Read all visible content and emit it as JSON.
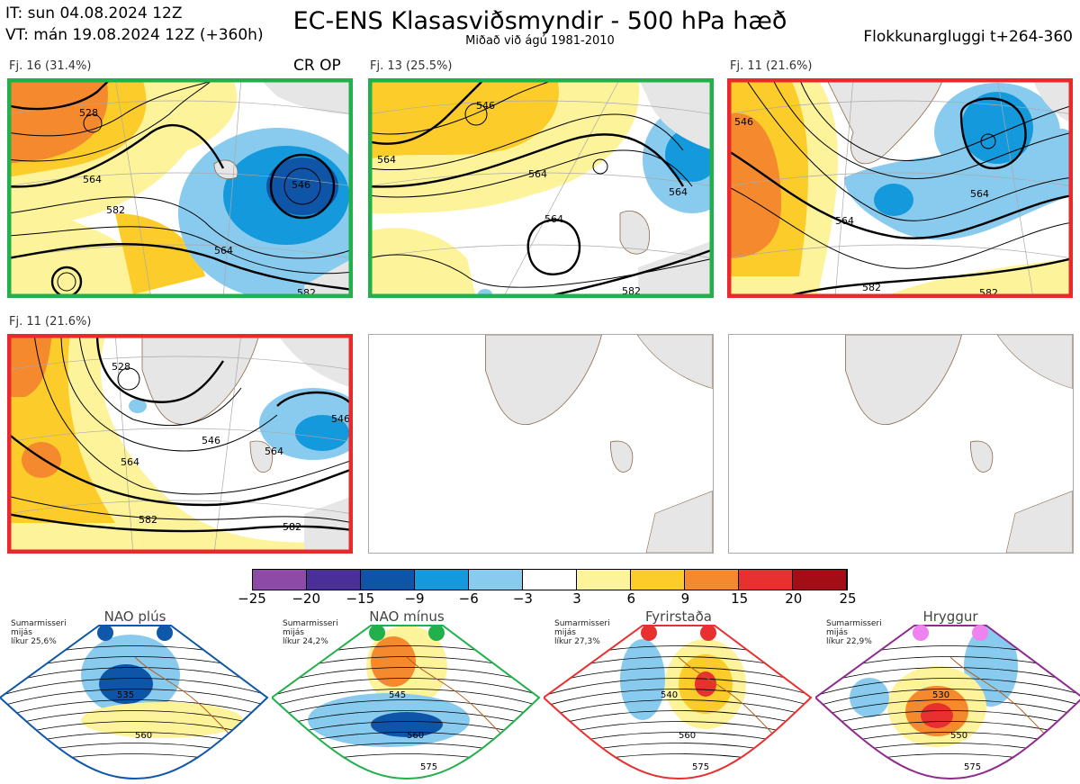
{
  "header": {
    "it_line": "IT: sun 04.08.2024 12Z",
    "vt_line": "VT: mán 19.08.2024 12Z  (+360h)",
    "title": "EC-ENS Klasasviðsmyndir - 500 hPa hæð",
    "subtitle": "Miðað við ágú 1981-2010",
    "window": "Flokkunargluggi t+264-360"
  },
  "panels": [
    {
      "label": "Fj. 16 (31.4%)",
      "tag": "CR OP",
      "border": "#21b04b",
      "contours": [
        "528",
        "546",
        "564",
        "582",
        "564",
        "582"
      ]
    },
    {
      "label": "Fj. 13 (25.5%)",
      "border": "#21b04b",
      "contours": [
        "546",
        "564",
        "564",
        "564",
        "564",
        "582"
      ]
    },
    {
      "label": "Fj. 11 (21.6%)",
      "border": "#ea2a2a",
      "contours": [
        "546",
        "564",
        "564",
        "582",
        "582"
      ]
    },
    {
      "label": "Fj. 11 (21.6%)",
      "border": "#ea2a2a",
      "contours": [
        "528",
        "546",
        "546",
        "564",
        "564",
        "582",
        "582"
      ]
    }
  ],
  "colorbar": {
    "ticks": [
      "−25",
      "−20",
      "−15",
      "−9",
      "−6",
      "−3",
      "3",
      "6",
      "9",
      "15",
      "20",
      "25"
    ],
    "colors": [
      "#8d4ba7",
      "#4a2f99",
      "#0e55a8",
      "#1399dc",
      "#88cbee",
      "#ffffff",
      "#fdf39a",
      "#fccd2a",
      "#f5892e",
      "#e93030",
      "#a50d16"
    ]
  },
  "regimes": [
    {
      "name": "NAO plús",
      "info": [
        "Sumarmisseri",
        "mijás",
        "líkur 25,6%"
      ],
      "color": "#0f57a8",
      "contours": [
        "535",
        "560"
      ]
    },
    {
      "name": "NAO mínus",
      "info": [
        "Sumarmisseri",
        "mijás",
        "líkur 24,2%"
      ],
      "color": "#21b04b",
      "contours": [
        "545",
        "560",
        "575"
      ]
    },
    {
      "name": "Fyrirstaða",
      "info": [
        "Sumarmisseri",
        "mijás",
        "líkur 27,3%"
      ],
      "color": "#e93030",
      "contours": [
        "540",
        "560",
        "575"
      ]
    },
    {
      "name": "Hryggur",
      "info": [
        "Sumarmisseri",
        "mijás",
        "líkur 22,9%"
      ],
      "color": "#8e2b8e",
      "contours": [
        "530",
        "550",
        "575"
      ]
    }
  ]
}
